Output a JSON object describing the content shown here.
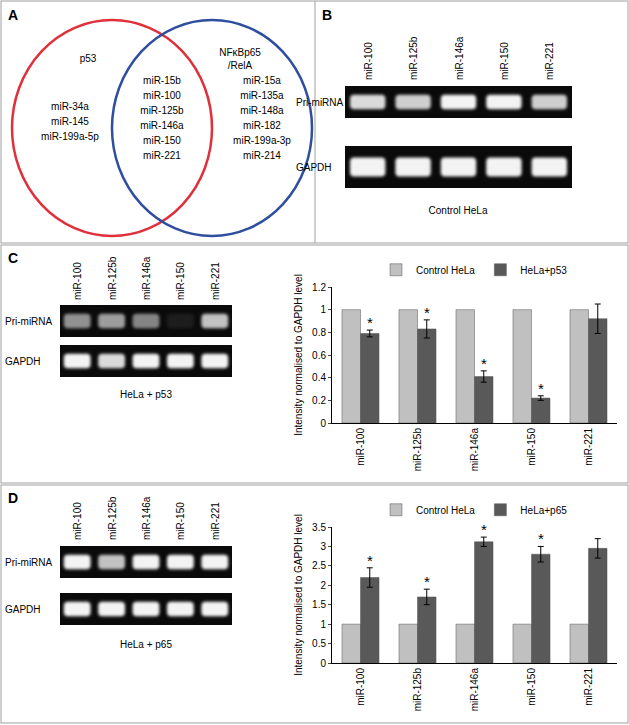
{
  "figure": {
    "panels": [
      {
        "label": "A",
        "venn": {
          "sets": [
            {
              "label_lines": [
                "p53"
              ],
              "color": "#e0303c",
              "items": [
                "miR-34a",
                "miR-145",
                "miR-199a-5p"
              ]
            },
            {
              "label_lines": [
                "NFκBp65",
                "/RelA"
              ],
              "color": "#2f4f9e",
              "items": [
                "miR-15a",
                "miR-135a",
                "miR-148a",
                "miR-182",
                "miR-199a-3p",
                "miR-214"
              ]
            }
          ],
          "intersection": [
            "miR-15b",
            "miR-100",
            "miR-125b",
            "miR-146a",
            "miR-150",
            "miR-221"
          ]
        }
      },
      {
        "label": "B",
        "gel": {
          "lanes": [
            "miR-100",
            "miR-125b",
            "miR-146a",
            "miR-150",
            "miR-221"
          ],
          "rows": [
            {
              "label": "Pri-miRNA",
              "intensity": [
                0.85,
                0.8,
                0.95,
                0.95,
                0.8
              ]
            },
            {
              "label": "GAPDH",
              "intensity": [
                0.95,
                0.95,
                0.95,
                0.95,
                0.95
              ]
            }
          ],
          "caption": "Control HeLa"
        }
      },
      {
        "label": "C",
        "gel": {
          "lanes": [
            "miR-100",
            "miR-125b",
            "miR-146a",
            "miR-150",
            "miR-221"
          ],
          "rows": [
            {
              "label": "Pri-miRNA",
              "intensity": [
                0.55,
                0.6,
                0.5,
                0.08,
                0.75
              ]
            },
            {
              "label": "GAPDH",
              "intensity": [
                0.95,
                0.85,
                0.95,
                0.95,
                0.95
              ]
            }
          ],
          "caption": "HeLa + p53"
        }
      },
      {
        "label": "D",
        "gel": {
          "lanes": [
            "miR-100",
            "miR-125b",
            "miR-146a",
            "miR-150",
            "miR-221"
          ],
          "rows": [
            {
              "label": "Pri-miRNA",
              "intensity": [
                0.95,
                0.75,
                0.95,
                0.95,
                0.95
              ]
            },
            {
              "label": "GAPDH",
              "intensity": [
                0.95,
                0.95,
                0.95,
                0.95,
                0.95
              ]
            }
          ],
          "caption": "HeLa + p65"
        }
      }
    ]
  },
  "chart_data": [
    {
      "type": "bar",
      "categories": [
        "miR-100",
        "miR-125b",
        "miR-146a",
        "miR-150",
        "miR-221"
      ],
      "series": [
        {
          "name": "Control HeLa",
          "color": "#c0c0c0",
          "values": [
            1,
            1,
            1,
            1,
            1
          ]
        },
        {
          "name": "HeLa+p53",
          "color": "#595959",
          "values": [
            0.79,
            0.83,
            0.41,
            0.22,
            0.92
          ],
          "errors": [
            0.03,
            0.08,
            0.05,
            0.02,
            0.13
          ]
        }
      ],
      "y_label": "Intensity normalised to GAPDH level",
      "ylim": [
        0,
        1.2
      ],
      "yticks": [
        0,
        0.2,
        0.4,
        0.6,
        0.8,
        1,
        1.2
      ],
      "grid": false,
      "legend": "top",
      "annotations": [
        {
          "text": "*",
          "category": "miR-100",
          "series": "HeLa+p53"
        },
        {
          "text": "*",
          "category": "miR-125b",
          "series": "HeLa+p53"
        },
        {
          "text": "*",
          "category": "miR-146a",
          "series": "HeLa+p53"
        },
        {
          "text": "*",
          "category": "miR-150",
          "series": "HeLa+p53"
        }
      ]
    },
    {
      "type": "bar",
      "categories": [
        "miR-100",
        "miR-125b",
        "miR-146a",
        "miR-150",
        "miR-221"
      ],
      "series": [
        {
          "name": "Control HeLa",
          "color": "#c0c0c0",
          "values": [
            1,
            1,
            1,
            1,
            1
          ]
        },
        {
          "name": "HeLa+p65",
          "color": "#595959",
          "values": [
            2.2,
            1.7,
            3.12,
            2.8,
            2.95
          ],
          "errors": [
            0.25,
            0.2,
            0.12,
            0.2,
            0.25
          ]
        }
      ],
      "y_label": "Intensity normalised to GAPDH level",
      "ylim": [
        0,
        3.5
      ],
      "yticks": [
        0,
        0.5,
        1,
        1.5,
        2,
        2.5,
        3,
        3.5
      ],
      "grid": false,
      "legend": "top",
      "annotations": [
        {
          "text": "*",
          "category": "miR-100",
          "series": "HeLa+p65"
        },
        {
          "text": "*",
          "category": "miR-125b",
          "series": "HeLa+p65"
        },
        {
          "text": "*",
          "category": "miR-146a",
          "series": "HeLa+p65"
        },
        {
          "text": "*",
          "category": "miR-150",
          "series": "HeLa+p65"
        }
      ]
    }
  ]
}
